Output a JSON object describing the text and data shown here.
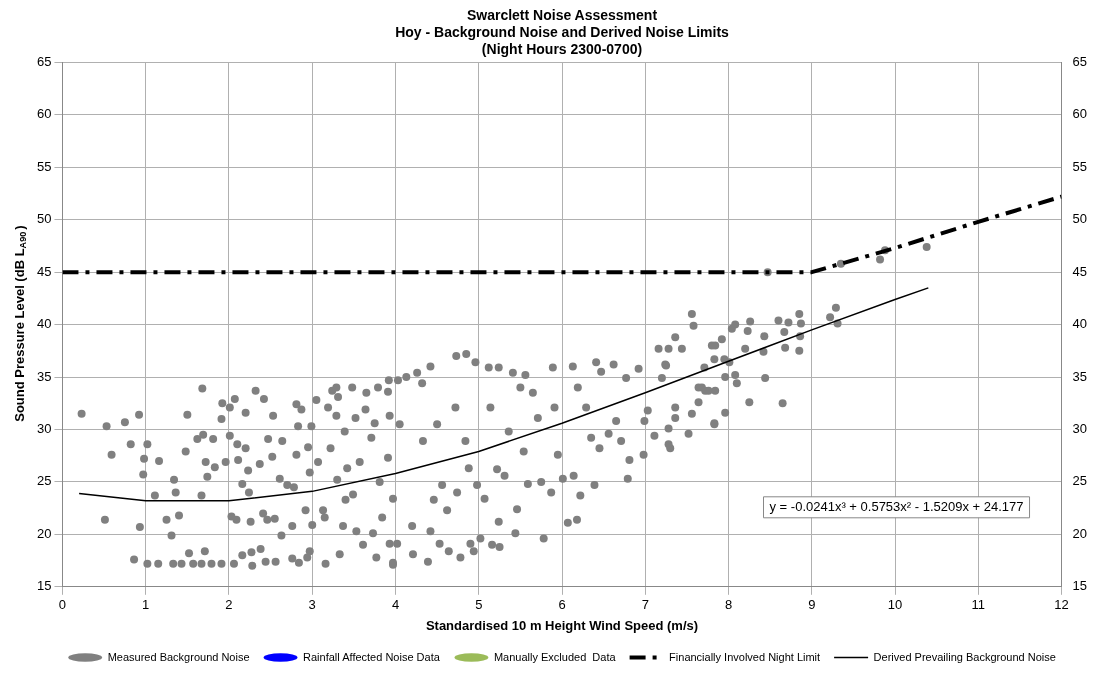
{
  "chart_data": {
    "type": "scatter",
    "title": [
      "Swarclett Noise Assessment",
      "Hoy - Background Noise and Derived Noise Limits",
      "(Night Hours 2300-0700)"
    ],
    "xlabel": "Standardised 10 m Height Wind Speed (m/s)",
    "ylabel": "Sound Pressure Level (dB L$_{A90}$)",
    "xlim": [
      0,
      12
    ],
    "xticks": [
      0,
      1,
      2,
      3,
      4,
      5,
      6,
      7,
      8,
      9,
      10,
      11,
      12
    ],
    "ylim": [
      15,
      65
    ],
    "yticks": [
      15,
      20,
      25,
      30,
      35,
      40,
      45,
      50,
      55,
      60,
      65
    ],
    "y2lim": [
      15,
      65
    ],
    "y2ticks": [
      15,
      20,
      25,
      30,
      35,
      40,
      45,
      50,
      55,
      60,
      65
    ],
    "grid": true,
    "legend": "bottom",
    "annotations": [
      "y = -0.0241x³ + 0.5753x² - 1.5209x + 24.177"
    ],
    "series": [
      {
        "name": "Measured Background Noise",
        "type": "scatter",
        "marker": "circle",
        "color": "#808080",
        "x": [
          0.23,
          0.53,
          0.59,
          0.51,
          0.75,
          0.82,
          0.92,
          0.93,
          0.86,
          1.02,
          0.98,
          0.97,
          1.02,
          1.15,
          1.16,
          1.11,
          1.25,
          1.31,
          1.34,
          1.36,
          1.4,
          1.33,
          1.43,
          1.5,
          1.48,
          1.52,
          1.57,
          1.67,
          1.68,
          1.69,
          1.62,
          1.67,
          1.72,
          1.74,
          1.81,
          1.83,
          1.71,
          1.79,
          1.91,
          1.91,
          1.92,
          2.01,
          1.96,
          2.01,
          2.07,
          2.1,
          2.11,
          2.03,
          2.09,
          2.06,
          2.16,
          2.16,
          2.2,
          2.2,
          2.23,
          2.24,
          2.26,
          2.28,
          2.27,
          2.32,
          2.37,
          2.42,
          2.41,
          2.46,
          2.47,
          2.53,
          2.52,
          2.55,
          2.38,
          2.44,
          2.56,
          2.64,
          2.63,
          2.61,
          2.7,
          2.76,
          2.78,
          2.81,
          2.81,
          2.83,
          2.87,
          2.84,
          2.76,
          2.92,
          2.94,
          2.97,
          2.99,
          2.95,
          2.97,
          3.0,
          3.05,
          3.07,
          3.13,
          3.15,
          3.16,
          3.19,
          3.22,
          3.24,
          3.29,
          3.29,
          3.3,
          3.31,
          3.33,
          3.39,
          3.4,
          3.37,
          3.42,
          3.48,
          3.49,
          3.52,
          3.53,
          3.57,
          3.61,
          3.65,
          3.64,
          3.71,
          3.73,
          3.75,
          3.77,
          3.79,
          3.81,
          3.84,
          3.91,
          3.93,
          3.93,
          3.97,
          4.03,
          3.92,
          3.91,
          3.97,
          4.02,
          3.97,
          4.13,
          4.05,
          4.2,
          4.21,
          4.26,
          4.32,
          4.33,
          4.39,
          4.42,
          4.42,
          4.46,
          4.5,
          4.56,
          4.53,
          4.62,
          4.64,
          4.73,
          4.72,
          4.74,
          4.78,
          4.85,
          4.84,
          4.88,
          4.9,
          4.96,
          4.94,
          4.98,
          5.02,
          5.07,
          5.12,
          5.14,
          5.16,
          5.24,
          5.24,
          5.25,
          5.22,
          5.31,
          5.36,
          5.41,
          5.44,
          5.46,
          5.5,
          5.54,
          5.56,
          5.59,
          5.65,
          5.71,
          5.75,
          5.78,
          5.87,
          5.89,
          5.91,
          5.95,
          6.01,
          6.07,
          6.13,
          6.14,
          6.18,
          6.19,
          6.22,
          6.29,
          6.35,
          6.39,
          6.41,
          6.47,
          6.45,
          6.56,
          6.62,
          6.65,
          6.71,
          6.77,
          6.79,
          6.81,
          6.92,
          6.98,
          6.99,
          7.03,
          7.16,
          7.28,
          7.24,
          7.28,
          7.36,
          7.52,
          7.56,
          7.64,
          7.72,
          7.83,
          7.84,
          7.56,
          7.58,
          7.36,
          7.44,
          7.25,
          7.2,
          7.71,
          7.8,
          7.92,
          8.04,
          8.08,
          8.23,
          8.26,
          8.2,
          7.95,
          7.83,
          7.68,
          7.76,
          7.84,
          7.96,
          8.08,
          8.01,
          8.1,
          8.25,
          7.96,
          7.83,
          7.64,
          7.36,
          7.28,
          7.11,
          7.3,
          8.43,
          8.42,
          8.44,
          8.6,
          8.67,
          8.68,
          8.65,
          8.72,
          8.85,
          8.87,
          8.86,
          8.85,
          9.22,
          9.29,
          9.31,
          9.35,
          9.82,
          9.88,
          10.38,
          8.47
        ],
        "values": [
          31.5,
          30.3,
          27.6,
          21.4,
          30.7,
          28.6,
          31.4,
          20.7,
          17.6,
          28.6,
          27.2,
          25.7,
          17.2,
          17.2,
          27.0,
          23.7,
          21.4,
          19.9,
          25.2,
          24.0,
          21.8,
          17.2,
          17.2,
          31.4,
          27.9,
          18.2,
          17.2,
          17.2,
          33.9,
          29.5,
          29.1,
          23.7,
          26.9,
          25.5,
          29.1,
          26.4,
          18.4,
          17.2,
          17.2,
          31.0,
          32.5,
          32.1,
          26.9,
          29.4,
          32.9,
          28.6,
          27.1,
          21.7,
          21.4,
          17.2,
          18.0,
          24.8,
          31.6,
          28.2,
          26.1,
          24.0,
          21.2,
          17.0,
          18.3,
          33.7,
          26.7,
          32.9,
          22.0,
          21.4,
          29.1,
          31.3,
          27.4,
          21.5,
          18.6,
          17.4,
          17.4,
          28.9,
          19.9,
          25.3,
          24.7,
          20.8,
          24.5,
          27.6,
          32.4,
          30.3,
          31.9,
          17.3,
          17.7,
          22.3,
          17.8,
          18.4,
          30.3,
          28.3,
          25.9,
          20.9,
          32.8,
          26.9,
          22.3,
          21.6,
          17.2,
          32.1,
          28.2,
          33.7,
          34.0,
          31.3,
          25.2,
          33.1,
          18.1,
          29.8,
          23.3,
          20.8,
          26.3,
          34.0,
          23.8,
          31.1,
          20.3,
          26.9,
          19.0,
          33.5,
          31.9,
          29.2,
          20.1,
          30.6,
          17.8,
          34.0,
          25.0,
          21.6,
          33.6,
          31.3,
          19.1,
          17.1,
          34.7,
          34.7,
          27.3,
          23.4,
          19.1,
          17.3,
          35.0,
          30.5,
          20.8,
          18.1,
          35.4,
          34.4,
          28.9,
          17.4,
          36.0,
          20.3,
          23.3,
          30.5,
          24.7,
          19.1,
          22.3,
          18.4,
          37.0,
          32.1,
          24.0,
          17.8,
          37.2,
          28.9,
          26.3,
          19.1,
          36.4,
          18.4,
          24.7,
          19.6,
          23.4,
          35.9,
          32.1,
          19.0,
          35.9,
          21.2,
          18.8,
          26.2,
          25.6,
          29.8,
          35.4,
          20.1,
          22.4,
          34.0,
          27.9,
          35.2,
          24.8,
          33.5,
          31.1,
          25.0,
          19.6,
          24.0,
          35.9,
          32.1,
          27.6,
          25.3,
          21.1,
          36.0,
          25.6,
          21.4,
          34.0,
          23.7,
          32.1,
          29.2,
          24.7,
          36.4,
          35.5,
          28.2,
          29.6,
          36.2,
          30.8,
          28.9,
          34.9,
          25.3,
          27.1,
          35.8,
          27.6,
          30.8,
          31.8,
          37.7,
          37.7,
          36.2,
          28.6,
          31.1,
          29.6,
          31.5,
          34.0,
          33.7,
          30.6,
          38.0,
          41.0,
          39.9,
          38.8,
          37.7,
          36.1,
          34.9,
          35.9,
          38.0,
          38.6,
          39.6,
          40.0,
          39.4,
          40.3,
          37.7,
          36.7,
          36.7,
          34.0,
          33.7,
          33.7,
          35.0,
          35.2,
          36.4,
          34.4,
          32.6,
          31.6,
          30.5,
          32.6,
          32.1,
          30.1,
          29.4,
          28.2,
          38.9,
          37.4,
          34.9,
          40.4,
          39.3,
          37.8,
          32.5,
          40.2,
          41.0,
          40.1,
          38.9,
          37.5,
          40.7,
          41.6,
          40.1,
          45.8,
          46.2,
          47.1,
          47.4,
          45.0
        ]
      },
      {
        "name": "Rainfall Affected Noise Data",
        "type": "scatter",
        "marker": "circle",
        "color": "#0000ff"
      },
      {
        "name": "Manually Excluded  Data",
        "type": "scatter",
        "marker": "circle",
        "color": "#9bbb59"
      },
      {
        "name": "Financially Involved Night Limit",
        "type": "line",
        "marker": "none",
        "line_style": "dashed",
        "color": "#000000",
        "x": [
          0,
          9,
          10,
          11,
          12
        ],
        "values": [
          45,
          45,
          47.3,
          49.8,
          52.2
        ]
      },
      {
        "name": "Derived Prevailing Background Noise",
        "type": "line",
        "marker": "none",
        "line_style": "solid",
        "color": "#000000",
        "x": [
          0.2,
          1,
          2,
          3,
          4,
          5,
          6,
          7,
          8,
          9,
          10,
          10.4
        ],
        "values": [
          23.9,
          23.2,
          23.2,
          24.1,
          25.8,
          27.9,
          30.6,
          33.5,
          36.5,
          39.5,
          42.4,
          43.5
        ]
      }
    ]
  }
}
